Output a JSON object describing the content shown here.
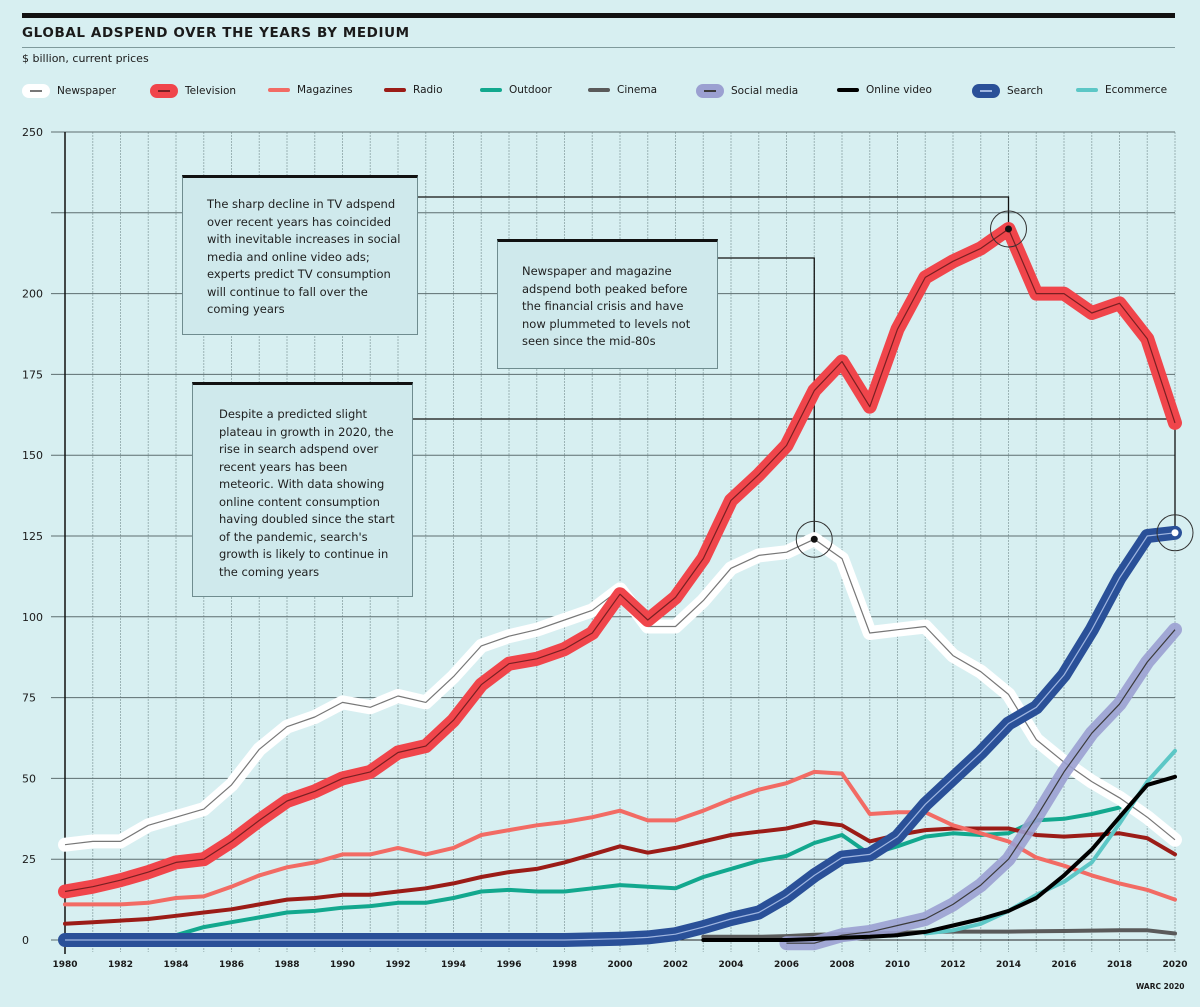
{
  "header": {
    "title": "GLOBAL ADSPEND OVER THE YEARS BY MEDIUM",
    "subtitle": "$ billion, current prices"
  },
  "credit": "WARC 2020",
  "annotations": [
    {
      "text": "The sharp decline in TV adspend over recent years has coincided with inevitable increases in social media and online video ads; experts predict TV consumption will continue to fall over the coming years",
      "target_series": "Television",
      "target_year": 2014
    },
    {
      "text": "Newspaper and magazine adspend both peaked before the financial crisis and have now plummeted to levels not seen since the mid-80s",
      "target_series": "Newspaper",
      "target_year": 2007
    },
    {
      "text": "Despite a predicted slight plateau in growth in 2020, the rise in search adspend over recent years has been meteoric. With data showing online content consumption having doubled since the start of the pandemic, search's growth is likely to continue in the coming years",
      "target_series": "Search",
      "target_year": 2020
    }
  ],
  "chart_data": {
    "type": "line",
    "title": "GLOBAL ADSPEND OVER THE YEARS BY MEDIUM",
    "subtitle": "$ billion, current prices",
    "xlabel": "",
    "ylabel": "$ billion",
    "xlim": [
      1980,
      2020
    ],
    "ylim": [
      0,
      250
    ],
    "yticks": [
      0,
      25,
      50,
      75,
      100,
      125,
      150,
      175,
      200,
      225,
      250
    ],
    "ytick_labels": [
      "0",
      "25",
      "50",
      "75",
      "100",
      "125",
      "150",
      "175",
      "200",
      "",
      "250"
    ],
    "xticks": [
      1980,
      1982,
      1984,
      1986,
      1988,
      1990,
      1992,
      1994,
      1996,
      1998,
      2000,
      2002,
      2004,
      2006,
      2008,
      2010,
      2012,
      2014,
      2016,
      2018,
      2020
    ],
    "grid": true,
    "legend_position": "top",
    "x": [
      1980,
      1981,
      1982,
      1983,
      1984,
      1985,
      1986,
      1987,
      1988,
      1989,
      1990,
      1991,
      1992,
      1993,
      1994,
      1995,
      1996,
      1997,
      1998,
      1999,
      2000,
      2001,
      2002,
      2003,
      2004,
      2005,
      2006,
      2007,
      2008,
      2009,
      2010,
      2011,
      2012,
      2013,
      2014,
      2015,
      2016,
      2017,
      2018,
      2019,
      2020
    ],
    "series": [
      {
        "name": "Newspaper",
        "color": "#ffffff",
        "inner": "#777777",
        "style": "thick",
        "values": [
          29.5,
          30.5,
          30.5,
          35.5,
          38,
          40.5,
          48,
          59,
          66,
          69,
          73.5,
          72,
          75.5,
          73.5,
          81.5,
          91,
          94,
          96,
          99,
          102,
          108.5,
          97,
          97,
          105,
          115,
          119,
          120,
          124,
          118,
          95,
          96,
          97,
          88,
          83,
          76,
          62,
          55,
          49,
          44,
          38,
          31
        ]
      },
      {
        "name": "Television",
        "color": "#f0454b",
        "inner": "#7a1f22",
        "style": "thick",
        "values": [
          15,
          16.5,
          18.5,
          21,
          24,
          25,
          30.5,
          37,
          43,
          46,
          50,
          52,
          58,
          60,
          68,
          79,
          85.5,
          87,
          90,
          95,
          107,
          99,
          106,
          118,
          136,
          144,
          153,
          170,
          179,
          165,
          189,
          205,
          210,
          214,
          220,
          200,
          200,
          194,
          197,
          186,
          160
        ]
      },
      {
        "name": "Magazines",
        "color": "#f26b64",
        "style": "thin",
        "values": [
          11,
          11,
          11,
          11.5,
          13,
          13.5,
          16.5,
          20,
          22.5,
          24,
          26.5,
          26.5,
          28.5,
          26.5,
          28.5,
          32.5,
          34,
          35.5,
          36.5,
          38,
          40,
          37,
          37,
          40,
          43.5,
          46.5,
          48.5,
          52,
          51.5,
          39,
          39.5,
          39.5,
          35.5,
          33,
          30.5,
          25.5,
          23,
          20,
          17.5,
          15.5,
          12.5
        ]
      },
      {
        "name": "Radio",
        "color": "#9b1c17",
        "style": "thin",
        "values": [
          5,
          5.5,
          6,
          6.5,
          7.5,
          8.5,
          9.5,
          11,
          12.5,
          13,
          14,
          14,
          15,
          16,
          17.5,
          19.5,
          21,
          22,
          24,
          26.5,
          29,
          27,
          28.5,
          30.5,
          32.5,
          33.5,
          34.5,
          36.5,
          35.5,
          30.5,
          32.5,
          34,
          34.5,
          34.5,
          34.5,
          32.5,
          32,
          32.5,
          33,
          31.5,
          26.5
        ]
      },
      {
        "name": "Outdoor",
        "color": "#12a88e",
        "style": "thin",
        "values": [
          1.5,
          1.5,
          1.5,
          1.5,
          1.5,
          4,
          5.5,
          7,
          8.5,
          9,
          10,
          10.5,
          11.5,
          11.5,
          13,
          15,
          15.5,
          15,
          15,
          16,
          17,
          16.5,
          16,
          19.5,
          22,
          24.5,
          26,
          30,
          32.5,
          26.5,
          29,
          32,
          33,
          32.5,
          33,
          37,
          37.5,
          39,
          41,
          null,
          null
        ]
      },
      {
        "name": "Cinema",
        "color": "#5a5a5a",
        "style": "thin",
        "values": [
          null,
          null,
          null,
          null,
          null,
          null,
          null,
          null,
          null,
          null,
          null,
          null,
          null,
          null,
          null,
          null,
          null,
          null,
          null,
          null,
          null,
          null,
          null,
          1,
          1,
          1,
          1.2,
          1.6,
          1.8,
          2,
          2.2,
          2.5,
          2.6,
          2.6,
          2.6,
          2.7,
          2.8,
          2.9,
          3,
          3,
          2
        ]
      },
      {
        "name": "Social media",
        "color": "#9ba0d1",
        "inner": "#3b3b3b",
        "style": "thick",
        "values": [
          null,
          null,
          null,
          null,
          null,
          null,
          null,
          null,
          null,
          null,
          null,
          null,
          null,
          null,
          null,
          null,
          null,
          null,
          null,
          null,
          null,
          null,
          null,
          null,
          null,
          null,
          -1,
          -1,
          1.5,
          2.5,
          4.5,
          6.5,
          11,
          17,
          25,
          38,
          52,
          64,
          73,
          86,
          96
        ]
      },
      {
        "name": "Online video",
        "color": "#000000",
        "style": "thin",
        "values": [
          null,
          null,
          null,
          null,
          null,
          null,
          null,
          null,
          null,
          null,
          null,
          null,
          null,
          null,
          null,
          null,
          null,
          null,
          null,
          null,
          null,
          null,
          null,
          0,
          0,
          0,
          0,
          0.3,
          0.7,
          1,
          1.5,
          2.5,
          4.5,
          6.5,
          9,
          13,
          20,
          28,
          38,
          48,
          50.5
        ]
      },
      {
        "name": "Search",
        "color": "#2a5098",
        "inner": "#9fb5e0",
        "style": "thick",
        "values": [
          0,
          0,
          0,
          0,
          0,
          0,
          0,
          0,
          0,
          0,
          0,
          0,
          0,
          0,
          0,
          0,
          0,
          0,
          0,
          0.2,
          0.4,
          0.8,
          1.8,
          4,
          6.5,
          8.5,
          13.5,
          20,
          25.5,
          26.5,
          32,
          42,
          50,
          58,
          67,
          72,
          82,
          96,
          112,
          125,
          126
        ]
      },
      {
        "name": "Ecommerce",
        "color": "#5cc7c6",
        "style": "thin",
        "values": [
          null,
          null,
          null,
          null,
          null,
          null,
          null,
          null,
          null,
          null,
          null,
          null,
          null,
          null,
          null,
          null,
          null,
          null,
          null,
          null,
          null,
          null,
          null,
          null,
          null,
          null,
          null,
          null,
          null,
          null,
          null,
          2,
          3,
          5,
          9,
          14,
          18,
          24,
          36,
          49,
          58.5
        ]
      }
    ]
  }
}
